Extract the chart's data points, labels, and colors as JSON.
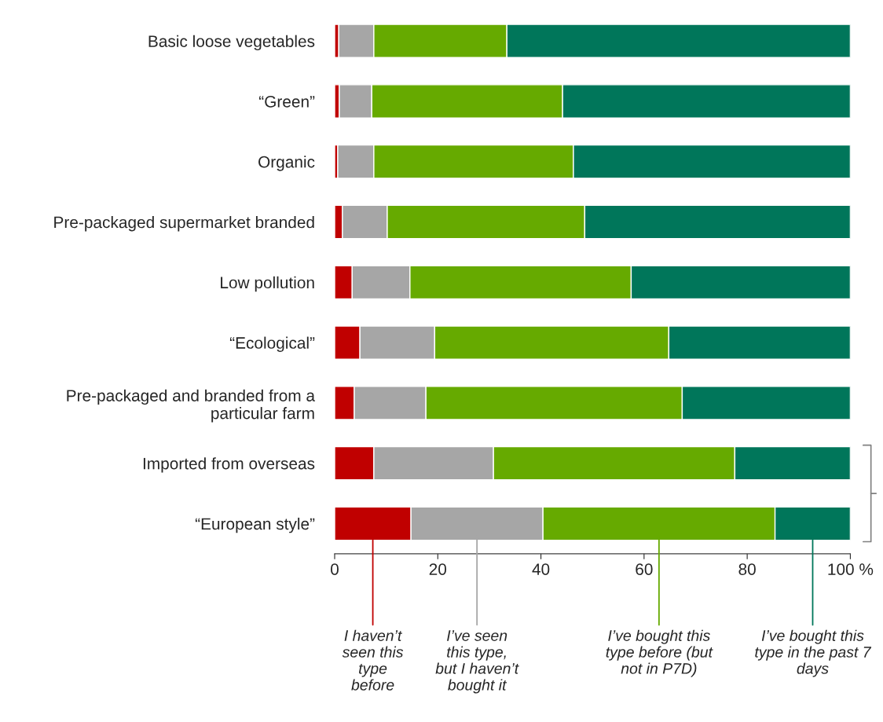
{
  "chart_data": {
    "type": "bar",
    "orientation": "horizontal",
    "stacked": true,
    "categories": [
      "Basic loose vegetables",
      "“Green”",
      "Organic",
      "Pre-packaged supermarket branded",
      "Low pollution",
      "“Ecological”",
      "Pre-packaged and branded from a\nparticular farm",
      "Imported from overseas",
      "“European style”"
    ],
    "series": [
      {
        "name": "I haven’t\nseen this\ntype\nbefore",
        "color": "#c00000",
        "values": [
          0.8,
          0.9,
          0.6,
          1.5,
          3.4,
          4.9,
          3.8,
          7.6,
          14.8
        ]
      },
      {
        "name": "I’ve seen\nthis type,\nbut I haven’t\nbought it",
        "color": "#a6a6a6",
        "values": [
          6.8,
          6.3,
          7.0,
          8.7,
          11.2,
          14.5,
          13.9,
          23.2,
          25.6
        ]
      },
      {
        "name": "I’ve bought this\ntype before (but\nnot in P7D)",
        "color": "#66aa00",
        "values": [
          25.8,
          37.0,
          38.7,
          38.3,
          42.9,
          45.4,
          49.7,
          46.8,
          45.0
        ]
      },
      {
        "name": "I’ve bought this\ntype in the past 7\ndays",
        "color": "#00765a",
        "values": [
          66.6,
          55.8,
          53.7,
          51.5,
          42.5,
          35.2,
          32.6,
          22.4,
          14.6
        ]
      }
    ],
    "xlim": [
      0,
      100
    ],
    "xticks": [
      0,
      20,
      40,
      60,
      80,
      {
        "value": 100,
        "label": "100 %"
      }
    ],
    "legend": "bottom"
  }
}
